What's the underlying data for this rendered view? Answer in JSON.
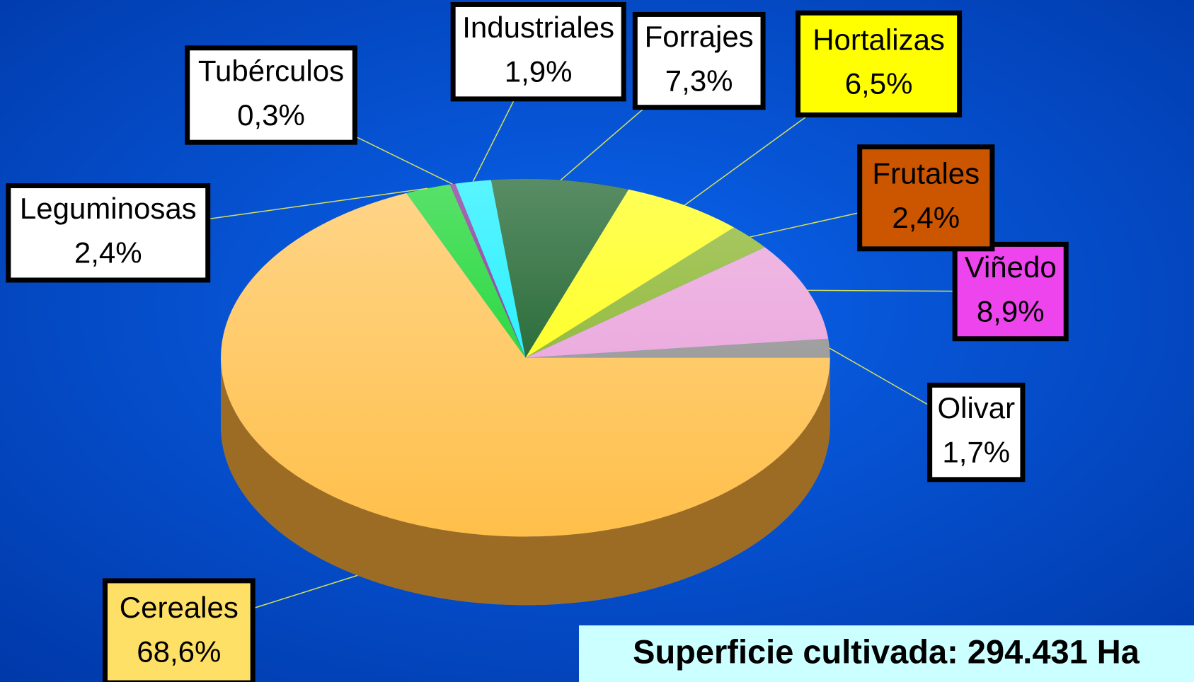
{
  "chart_data": {
    "type": "pie3d",
    "categories": [
      "Olivar",
      "Viñedo",
      "Frutales",
      "Hortalizas",
      "Forrajes",
      "Industriales",
      "Tubérculos",
      "Leguminosas",
      "Cereales"
    ],
    "values": [
      1.7,
      8.9,
      2.4,
      6.5,
      7.3,
      1.9,
      0.3,
      2.4,
      68.6
    ],
    "value_labels": [
      "1,7%",
      "8,9%",
      "2,4%",
      "6,5%",
      "7,3%",
      "1,9%",
      "0,3%",
      "2,4%",
      "68,6%"
    ],
    "colors": [
      "#8a8a8a",
      "#e89ad8",
      "#7fae1a",
      "#ffff00",
      "#004f12",
      "#00eeff",
      "#7a1a8a",
      "#00d11a",
      "#ffbf4a"
    ],
    "label_fills": [
      "#ffffff",
      "#ee44ee",
      "#cc5500",
      "#ffff00",
      "#ffffff",
      "#ffffff",
      "#ffffff",
      "#ffffff",
      "#ffe066"
    ],
    "annotation": "Superficie cultivada: 294.431 Ha"
  }
}
